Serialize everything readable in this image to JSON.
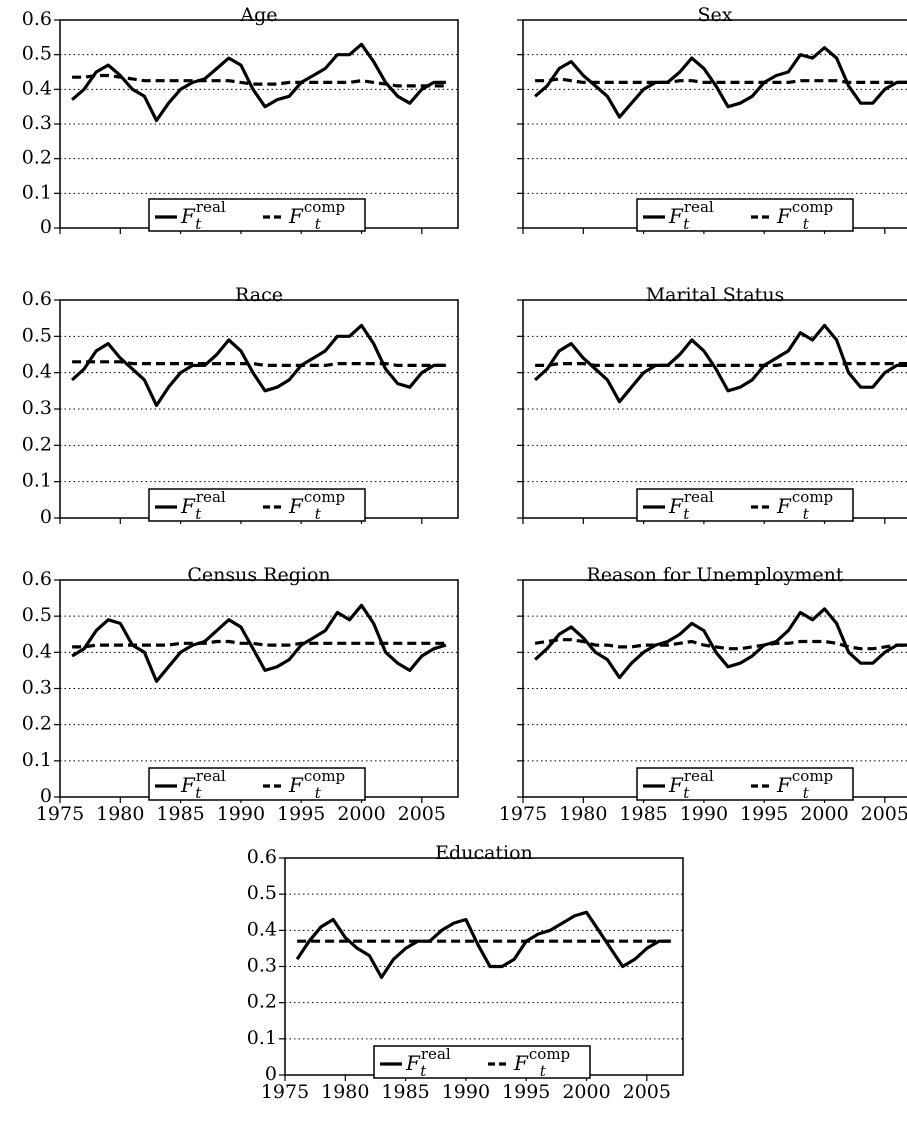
{
  "chart_data": [
    {
      "type": "line",
      "title": "Age",
      "x": [
        1976,
        1977,
        1978,
        1979,
        1980,
        1981,
        1982,
        1983,
        1984,
        1985,
        1986,
        1987,
        1988,
        1989,
        1990,
        1991,
        1992,
        1993,
        1994,
        1995,
        1996,
        1997,
        1998,
        1999,
        2000,
        2001,
        2002,
        2003,
        2004,
        2005,
        2006,
        2007
      ],
      "series": [
        {
          "name": "F_t^real",
          "color": "#000000",
          "values": [
            0.37,
            0.4,
            0.45,
            0.47,
            0.44,
            0.4,
            0.38,
            0.31,
            0.36,
            0.4,
            0.42,
            0.43,
            0.46,
            0.49,
            0.47,
            0.4,
            0.35,
            0.37,
            0.38,
            0.42,
            0.44,
            0.46,
            0.5,
            0.5,
            0.53,
            0.48,
            0.42,
            0.38,
            0.36,
            0.4,
            0.42,
            0.42
          ]
        },
        {
          "name": "F_t^comp",
          "color": "#000000",
          "values": [
            0.435,
            0.435,
            0.44,
            0.44,
            0.435,
            0.43,
            0.425,
            0.425,
            0.425,
            0.425,
            0.425,
            0.425,
            0.425,
            0.425,
            0.42,
            0.415,
            0.415,
            0.415,
            0.42,
            0.42,
            0.42,
            0.42,
            0.42,
            0.42,
            0.425,
            0.42,
            0.415,
            0.41,
            0.41,
            0.41,
            0.41,
            0.41
          ]
        }
      ],
      "xlim": [
        1975,
        2008
      ],
      "ylim": [
        0,
        0.6
      ],
      "xticks": [
        1975,
        1980,
        1985,
        1990,
        1995,
        2000,
        2005
      ],
      "yticks": [
        0,
        0.1,
        0.2,
        0.3,
        0.4,
        0.5,
        0.6
      ],
      "grid": true,
      "legend": "lower center"
    },
    {
      "type": "line",
      "title": "Sex",
      "x": [
        1976,
        1977,
        1978,
        1979,
        1980,
        1981,
        1982,
        1983,
        1984,
        1985,
        1986,
        1987,
        1988,
        1989,
        1990,
        1991,
        1992,
        1993,
        1994,
        1995,
        1996,
        1997,
        1998,
        1999,
        2000,
        2001,
        2002,
        2003,
        2004,
        2005,
        2006,
        2007
      ],
      "series": [
        {
          "name": "F_t^real",
          "color": "#000000",
          "values": [
            0.38,
            0.41,
            0.46,
            0.48,
            0.44,
            0.41,
            0.38,
            0.32,
            0.36,
            0.4,
            0.42,
            0.42,
            0.45,
            0.49,
            0.46,
            0.41,
            0.35,
            0.36,
            0.38,
            0.42,
            0.44,
            0.45,
            0.5,
            0.49,
            0.52,
            0.49,
            0.41,
            0.36,
            0.36,
            0.4,
            0.42,
            0.42
          ]
        },
        {
          "name": "F_t^comp",
          "color": "#000000",
          "values": [
            0.425,
            0.425,
            0.43,
            0.425,
            0.42,
            0.42,
            0.42,
            0.42,
            0.42,
            0.42,
            0.42,
            0.42,
            0.425,
            0.425,
            0.42,
            0.42,
            0.42,
            0.42,
            0.42,
            0.42,
            0.42,
            0.42,
            0.425,
            0.425,
            0.425,
            0.425,
            0.42,
            0.42,
            0.42,
            0.42,
            0.42,
            0.42
          ]
        }
      ],
      "xlim": [
        1975,
        2008
      ],
      "ylim": [
        0,
        0.6
      ],
      "xticks": [
        1975,
        1980,
        1985,
        1990,
        1995,
        2000,
        2005
      ],
      "yticks": [
        0,
        0.1,
        0.2,
        0.3,
        0.4,
        0.5,
        0.6
      ],
      "grid": true,
      "legend": "lower center"
    },
    {
      "type": "line",
      "title": "Race",
      "x": [
        1976,
        1977,
        1978,
        1979,
        1980,
        1981,
        1982,
        1983,
        1984,
        1985,
        1986,
        1987,
        1988,
        1989,
        1990,
        1991,
        1992,
        1993,
        1994,
        1995,
        1996,
        1997,
        1998,
        1999,
        2000,
        2001,
        2002,
        2003,
        2004,
        2005,
        2006,
        2007
      ],
      "series": [
        {
          "name": "F_t^real",
          "color": "#000000",
          "values": [
            0.38,
            0.41,
            0.46,
            0.48,
            0.44,
            0.41,
            0.38,
            0.31,
            0.36,
            0.4,
            0.42,
            0.42,
            0.45,
            0.49,
            0.46,
            0.4,
            0.35,
            0.36,
            0.38,
            0.42,
            0.44,
            0.46,
            0.5,
            0.5,
            0.53,
            0.48,
            0.41,
            0.37,
            0.36,
            0.4,
            0.42,
            0.42
          ]
        },
        {
          "name": "F_t^comp",
          "color": "#000000",
          "values": [
            0.43,
            0.43,
            0.43,
            0.43,
            0.43,
            0.425,
            0.425,
            0.425,
            0.425,
            0.425,
            0.425,
            0.425,
            0.425,
            0.425,
            0.425,
            0.425,
            0.42,
            0.42,
            0.42,
            0.42,
            0.42,
            0.42,
            0.425,
            0.425,
            0.425,
            0.425,
            0.425,
            0.42,
            0.42,
            0.42,
            0.42,
            0.42
          ]
        }
      ],
      "xlim": [
        1975,
        2008
      ],
      "ylim": [
        0,
        0.6
      ],
      "xticks": [
        1975,
        1980,
        1985,
        1990,
        1995,
        2000,
        2005
      ],
      "yticks": [
        0,
        0.1,
        0.2,
        0.3,
        0.4,
        0.5,
        0.6
      ],
      "grid": true,
      "legend": "lower center"
    },
    {
      "type": "line",
      "title": "Marital Status",
      "x": [
        1976,
        1977,
        1978,
        1979,
        1980,
        1981,
        1982,
        1983,
        1984,
        1985,
        1986,
        1987,
        1988,
        1989,
        1990,
        1991,
        1992,
        1993,
        1994,
        1995,
        1996,
        1997,
        1998,
        1999,
        2000,
        2001,
        2002,
        2003,
        2004,
        2005,
        2006,
        2007
      ],
      "series": [
        {
          "name": "F_t^real",
          "color": "#000000",
          "values": [
            0.38,
            0.41,
            0.46,
            0.48,
            0.44,
            0.41,
            0.38,
            0.32,
            0.36,
            0.4,
            0.42,
            0.42,
            0.45,
            0.49,
            0.46,
            0.41,
            0.35,
            0.36,
            0.38,
            0.42,
            0.44,
            0.46,
            0.51,
            0.49,
            0.53,
            0.49,
            0.4,
            0.36,
            0.36,
            0.4,
            0.42,
            0.42
          ]
        },
        {
          "name": "F_t^comp",
          "color": "#000000",
          "values": [
            0.42,
            0.42,
            0.425,
            0.425,
            0.425,
            0.42,
            0.42,
            0.42,
            0.42,
            0.42,
            0.42,
            0.42,
            0.42,
            0.42,
            0.42,
            0.42,
            0.42,
            0.42,
            0.42,
            0.42,
            0.42,
            0.425,
            0.425,
            0.425,
            0.425,
            0.425,
            0.425,
            0.425,
            0.425,
            0.425,
            0.425,
            0.425
          ]
        }
      ],
      "xlim": [
        1975,
        2008
      ],
      "ylim": [
        0,
        0.6
      ],
      "xticks": [
        1975,
        1980,
        1985,
        1990,
        1995,
        2000,
        2005
      ],
      "yticks": [
        0,
        0.1,
        0.2,
        0.3,
        0.4,
        0.5,
        0.6
      ],
      "grid": true,
      "legend": "lower center"
    },
    {
      "type": "line",
      "title": "Census Region",
      "x": [
        1976,
        1977,
        1978,
        1979,
        1980,
        1981,
        1982,
        1983,
        1984,
        1985,
        1986,
        1987,
        1988,
        1989,
        1990,
        1991,
        1992,
        1993,
        1994,
        1995,
        1996,
        1997,
        1998,
        1999,
        2000,
        2001,
        2002,
        2003,
        2004,
        2005,
        2006,
        2007
      ],
      "series": [
        {
          "name": "F_t^real",
          "color": "#000000",
          "values": [
            0.39,
            0.41,
            0.46,
            0.49,
            0.48,
            0.42,
            0.4,
            0.32,
            0.36,
            0.4,
            0.42,
            0.43,
            0.46,
            0.49,
            0.47,
            0.41,
            0.35,
            0.36,
            0.38,
            0.42,
            0.44,
            0.46,
            0.51,
            0.49,
            0.53,
            0.48,
            0.4,
            0.37,
            0.35,
            0.39,
            0.41,
            0.42
          ]
        },
        {
          "name": "F_t^comp",
          "color": "#000000",
          "values": [
            0.415,
            0.415,
            0.42,
            0.42,
            0.42,
            0.42,
            0.42,
            0.42,
            0.42,
            0.425,
            0.425,
            0.425,
            0.43,
            0.43,
            0.425,
            0.425,
            0.42,
            0.42,
            0.42,
            0.425,
            0.425,
            0.425,
            0.425,
            0.425,
            0.425,
            0.425,
            0.425,
            0.425,
            0.425,
            0.425,
            0.425,
            0.425
          ]
        }
      ],
      "xlim": [
        1975,
        2008
      ],
      "ylim": [
        0,
        0.6
      ],
      "xticks": [
        1975,
        1980,
        1985,
        1990,
        1995,
        2000,
        2005
      ],
      "yticks": [
        0,
        0.1,
        0.2,
        0.3,
        0.4,
        0.5,
        0.6
      ],
      "grid": true,
      "legend": "lower center"
    },
    {
      "type": "line",
      "title": "Reason for Unemployment",
      "x": [
        1976,
        1977,
        1978,
        1979,
        1980,
        1981,
        1982,
        1983,
        1984,
        1985,
        1986,
        1987,
        1988,
        1989,
        1990,
        1991,
        1992,
        1993,
        1994,
        1995,
        1996,
        1997,
        1998,
        1999,
        2000,
        2001,
        2002,
        2003,
        2004,
        2005,
        2006,
        2007
      ],
      "series": [
        {
          "name": "F_t^real",
          "color": "#000000",
          "values": [
            0.38,
            0.41,
            0.45,
            0.47,
            0.44,
            0.4,
            0.38,
            0.33,
            0.37,
            0.4,
            0.42,
            0.43,
            0.45,
            0.48,
            0.46,
            0.4,
            0.36,
            0.37,
            0.39,
            0.42,
            0.43,
            0.46,
            0.51,
            0.49,
            0.52,
            0.48,
            0.4,
            0.37,
            0.37,
            0.4,
            0.42,
            0.42
          ]
        },
        {
          "name": "F_t^comp",
          "color": "#000000",
          "values": [
            0.425,
            0.43,
            0.435,
            0.435,
            0.43,
            0.42,
            0.42,
            0.415,
            0.415,
            0.42,
            0.42,
            0.42,
            0.425,
            0.43,
            0.42,
            0.415,
            0.41,
            0.41,
            0.415,
            0.42,
            0.425,
            0.425,
            0.43,
            0.43,
            0.43,
            0.425,
            0.415,
            0.41,
            0.41,
            0.415,
            0.42,
            0.42
          ]
        }
      ],
      "xlim": [
        1975,
        2008
      ],
      "ylim": [
        0,
        0.6
      ],
      "xticks": [
        1975,
        1980,
        1985,
        1990,
        1995,
        2000,
        2005
      ],
      "yticks": [
        0,
        0.1,
        0.2,
        0.3,
        0.4,
        0.5,
        0.6
      ],
      "grid": true,
      "legend": "lower center"
    },
    {
      "type": "line",
      "title": "Education",
      "x": [
        1976,
        1977,
        1978,
        1979,
        1980,
        1981,
        1982,
        1983,
        1984,
        1985,
        1986,
        1987,
        1988,
        1989,
        1990,
        1991,
        1992,
        1993,
        1994,
        1995,
        1996,
        1997,
        1998,
        1999,
        2000,
        2001,
        2002,
        2003,
        2004,
        2005,
        2006,
        2007
      ],
      "series": [
        {
          "name": "F_t^real",
          "color": "#000000",
          "values": [
            0.32,
            0.37,
            0.41,
            0.43,
            0.38,
            0.35,
            0.33,
            0.27,
            0.32,
            0.35,
            0.37,
            0.37,
            0.4,
            0.42,
            0.43,
            0.36,
            0.3,
            0.3,
            0.32,
            0.37,
            0.39,
            0.4,
            0.42,
            0.44,
            0.45,
            0.4,
            0.35,
            0.3,
            0.32,
            0.35,
            0.37,
            0.37
          ]
        },
        {
          "name": "F_t^comp",
          "color": "#000000",
          "values": [
            0.37,
            0.37,
            0.37,
            0.37,
            0.37,
            0.37,
            0.37,
            0.37,
            0.37,
            0.37,
            0.37,
            0.37,
            0.37,
            0.37,
            0.37,
            0.37,
            0.37,
            0.37,
            0.37,
            0.37,
            0.37,
            0.37,
            0.37,
            0.37,
            0.37,
            0.37,
            0.37,
            0.37,
            0.37,
            0.37,
            0.37,
            0.37
          ]
        }
      ],
      "xlim": [
        1975,
        2008
      ],
      "ylim": [
        0,
        0.6
      ],
      "xticks": [
        1975,
        1980,
        1985,
        1990,
        1995,
        2000,
        2005
      ],
      "yticks": [
        0,
        0.1,
        0.2,
        0.3,
        0.4,
        0.5,
        0.6
      ],
      "grid": true,
      "legend": "lower center"
    }
  ]
}
